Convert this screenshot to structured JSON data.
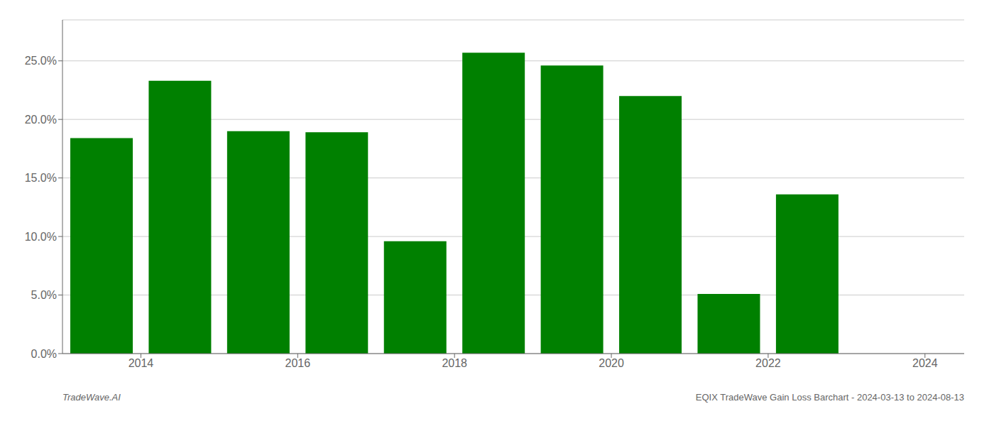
{
  "chart_data": {
    "type": "bar",
    "x": [
      2013.5,
      2014.5,
      2015.5,
      2016.5,
      2017.5,
      2018.5,
      2019.5,
      2020.5,
      2021.5,
      2022.5,
      2023.5
    ],
    "values": [
      0.184,
      0.233,
      0.19,
      0.189,
      0.096,
      0.257,
      0.246,
      0.22,
      0.051,
      0.136,
      0.0
    ],
    "color": "#008000",
    "xlim": [
      2013.0,
      2024.5
    ],
    "xticks": [
      2014,
      2016,
      2018,
      2020,
      2022,
      2024
    ],
    "ylim": [
      0,
      0.285
    ],
    "yticks": [
      {
        "value": 0.0,
        "label": "0.0%"
      },
      {
        "value": 0.05,
        "label": "5.0%"
      },
      {
        "value": 0.1,
        "label": "10.0%"
      },
      {
        "value": 0.15,
        "label": "15.0%"
      },
      {
        "value": 0.2,
        "label": "20.0%"
      },
      {
        "value": 0.25,
        "label": "25.0%"
      }
    ],
    "grid": true,
    "annotations": [
      "TradeWave.AI",
      "EQIX TradeWave Gain Loss Barchart - 2024-03-13 to 2024-08-13"
    ]
  }
}
